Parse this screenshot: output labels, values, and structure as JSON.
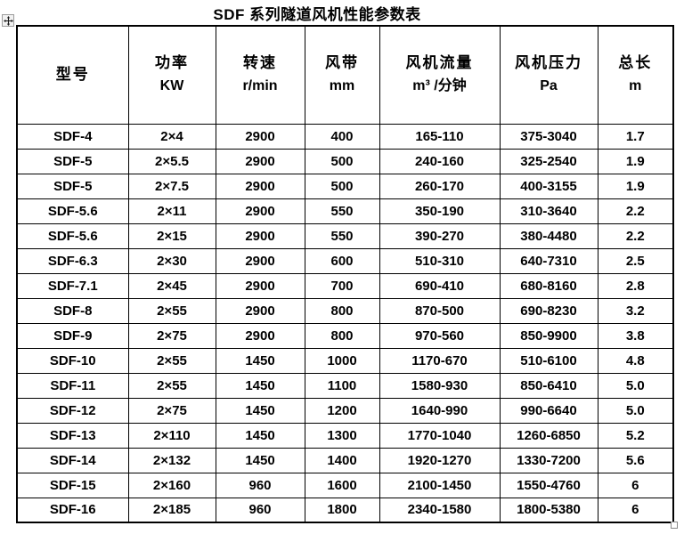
{
  "title": "SDF 系列隧道风机性能参数表",
  "colors": {
    "text": "#000000",
    "border": "#000000",
    "background": "#ffffff",
    "handle_border": "#9b9b9b",
    "handle_background": "#f2f2f2"
  },
  "handles": {
    "move_tooltip": "table-move-handle",
    "resize_tooltip": "table-resize-handle"
  },
  "table": {
    "columns": [
      {
        "key": "model",
        "label": "型号",
        "unit": ""
      },
      {
        "key": "power",
        "label": "功率",
        "unit": "KW"
      },
      {
        "key": "speed",
        "label": "转速",
        "unit": "r/min"
      },
      {
        "key": "duct",
        "label": "风带",
        "unit": "mm"
      },
      {
        "key": "flow",
        "label": "风机流量",
        "unit": "m³ /分钟"
      },
      {
        "key": "pressure",
        "label": "风机压力",
        "unit": "Pa"
      },
      {
        "key": "length",
        "label": "总长",
        "unit": "m"
      }
    ],
    "rows": [
      [
        "SDF-4",
        "2×4",
        "2900",
        "400",
        "165-110",
        "375-3040",
        "1.7"
      ],
      [
        "SDF-5",
        "2×5.5",
        "2900",
        "500",
        "240-160",
        "325-2540",
        "1.9"
      ],
      [
        "SDF-5",
        "2×7.5",
        "2900",
        "500",
        "260-170",
        "400-3155",
        "1.9"
      ],
      [
        "SDF-5.6",
        "2×11",
        "2900",
        "550",
        "350-190",
        "310-3640",
        "2.2"
      ],
      [
        "SDF-5.6",
        "2×15",
        "2900",
        "550",
        "390-270",
        "380-4480",
        "2.2"
      ],
      [
        "SDF-6.3",
        "2×30",
        "2900",
        "600",
        "510-310",
        "640-7310",
        "2.5"
      ],
      [
        "SDF-7.1",
        "2×45",
        "2900",
        "700",
        "690-410",
        "680-8160",
        "2.8"
      ],
      [
        "SDF-8",
        "2×55",
        "2900",
        "800",
        "870-500",
        "690-8230",
        "3.2"
      ],
      [
        "SDF-9",
        "2×75",
        "2900",
        "800",
        "970-560",
        "850-9900",
        "3.8"
      ],
      [
        "SDF-10",
        "2×55",
        "1450",
        "1000",
        "1170-670",
        "510-6100",
        "4.8"
      ],
      [
        "SDF-11",
        "2×55",
        "1450",
        "1100",
        "1580-930",
        "850-6410",
        "5.0"
      ],
      [
        "SDF-12",
        "2×75",
        "1450",
        "1200",
        "1640-990",
        "990-6640",
        "5.0"
      ],
      [
        "SDF-13",
        "2×110",
        "1450",
        "1300",
        "1770-1040",
        "1260-6850",
        "5.2"
      ],
      [
        "SDF-14",
        "2×132",
        "1450",
        "1400",
        "1920-1270",
        "1330-7200",
        "5.6"
      ],
      [
        "SDF-15",
        "2×160",
        "960",
        "1600",
        "2100-1450",
        "1550-4760",
        "6"
      ],
      [
        "SDF-16",
        "2×185",
        "960",
        "1800",
        "2340-1580",
        "1800-5380",
        "6"
      ]
    ]
  }
}
